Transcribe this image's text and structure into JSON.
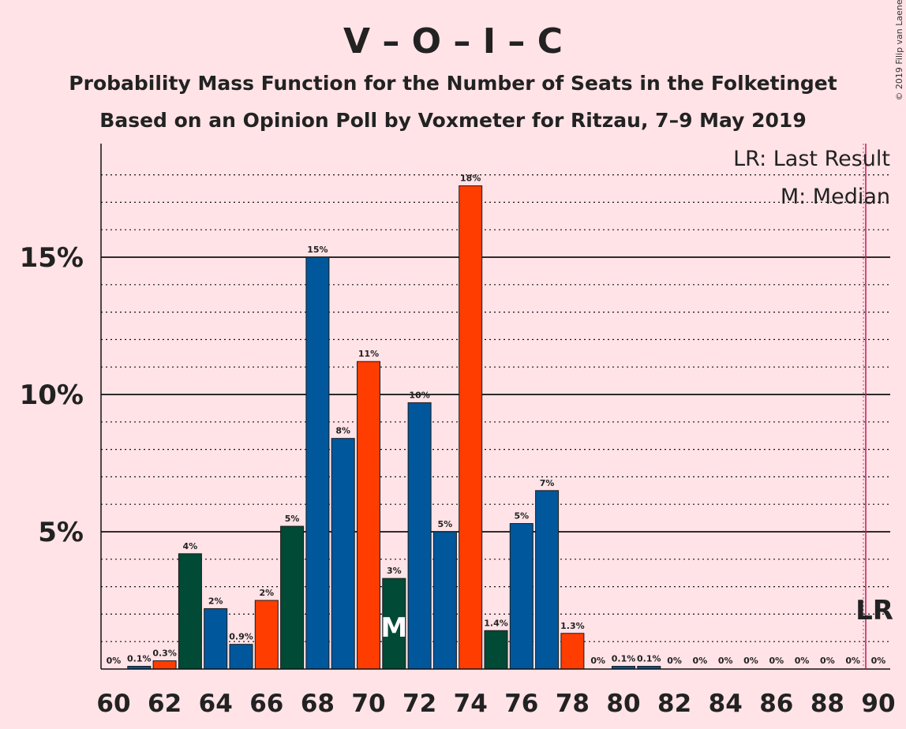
{
  "chart_data": {
    "type": "bar",
    "title": "V – O – I – C",
    "subtitle": "Probability Mass Function for the Number of Seats in the Folketinget",
    "subtitle2": "Based on an Opinion Poll by Voxmeter for Ritzau, 7–9 May 2019",
    "copyright": "© 2019 Filip van Laenen",
    "xlabel": "",
    "ylabel": "",
    "ylim": [
      0,
      19
    ],
    "yticks": [
      {
        "value": 5,
        "label": "5%"
      },
      {
        "value": 10,
        "label": "10%"
      },
      {
        "value": 15,
        "label": "15%"
      }
    ],
    "xticks": [
      60,
      62,
      64,
      66,
      68,
      70,
      72,
      74,
      76,
      78,
      80,
      82,
      84,
      86,
      88,
      90
    ],
    "grid": "dotted minor every 1%, solid major every 5%",
    "legend": {
      "position": "top-right",
      "entries": [
        "LR: Last Result",
        "M: Median"
      ]
    },
    "last_result_seat": 90,
    "last_result_label": "LR",
    "median_seat": 71,
    "median_label": "M",
    "colors": {
      "blue": "#00579C",
      "orange": "#FF3D00",
      "green": "#004A36",
      "background": "#FFE3E7",
      "lr_line": "#C2185B"
    },
    "bars": [
      {
        "seat": 60,
        "value": 0.0,
        "label": "0%",
        "color": "blue"
      },
      {
        "seat": 61,
        "value": 0.1,
        "label": "0.1%",
        "color": "blue"
      },
      {
        "seat": 62,
        "value": 0.3,
        "label": "0.3%",
        "color": "orange"
      },
      {
        "seat": 63,
        "value": 4.2,
        "label": "4%",
        "color": "green"
      },
      {
        "seat": 64,
        "value": 2.2,
        "label": "2%",
        "color": "blue"
      },
      {
        "seat": 65,
        "value": 0.9,
        "label": "0.9%",
        "color": "blue"
      },
      {
        "seat": 66,
        "value": 2.5,
        "label": "2%",
        "color": "orange"
      },
      {
        "seat": 67,
        "value": 5.2,
        "label": "5%",
        "color": "green"
      },
      {
        "seat": 68,
        "value": 15.0,
        "label": "15%",
        "color": "blue"
      },
      {
        "seat": 69,
        "value": 8.4,
        "label": "8%",
        "color": "blue"
      },
      {
        "seat": 70,
        "value": 11.2,
        "label": "11%",
        "color": "orange"
      },
      {
        "seat": 71,
        "value": 3.3,
        "label": "3%",
        "color": "green"
      },
      {
        "seat": 72,
        "value": 9.7,
        "label": "10%",
        "color": "blue"
      },
      {
        "seat": 73,
        "value": 5.0,
        "label": "5%",
        "color": "blue"
      },
      {
        "seat": 74,
        "value": 17.6,
        "label": "18%",
        "color": "orange"
      },
      {
        "seat": 75,
        "value": 1.4,
        "label": "1.4%",
        "color": "green"
      },
      {
        "seat": 76,
        "value": 5.3,
        "label": "5%",
        "color": "blue"
      },
      {
        "seat": 77,
        "value": 6.5,
        "label": "7%",
        "color": "blue"
      },
      {
        "seat": 78,
        "value": 1.3,
        "label": "1.3%",
        "color": "orange"
      },
      {
        "seat": 79,
        "value": 0.0,
        "label": "0%",
        "color": "green"
      },
      {
        "seat": 80,
        "value": 0.1,
        "label": "0.1%",
        "color": "blue"
      },
      {
        "seat": 81,
        "value": 0.1,
        "label": "0.1%",
        "color": "blue"
      },
      {
        "seat": 82,
        "value": 0.0,
        "label": "0%",
        "color": "orange"
      },
      {
        "seat": 83,
        "value": 0.0,
        "label": "0%",
        "color": "green"
      },
      {
        "seat": 84,
        "value": 0.0,
        "label": "0%",
        "color": "blue"
      },
      {
        "seat": 85,
        "value": 0.0,
        "label": "0%",
        "color": "blue"
      },
      {
        "seat": 86,
        "value": 0.0,
        "label": "0%",
        "color": "orange"
      },
      {
        "seat": 87,
        "value": 0.0,
        "label": "0%",
        "color": "green"
      },
      {
        "seat": 88,
        "value": 0.0,
        "label": "0%",
        "color": "blue"
      },
      {
        "seat": 89,
        "value": 0.0,
        "label": "0%",
        "color": "blue"
      },
      {
        "seat": 90,
        "value": 0.0,
        "label": "0%",
        "color": "orange"
      }
    ]
  }
}
